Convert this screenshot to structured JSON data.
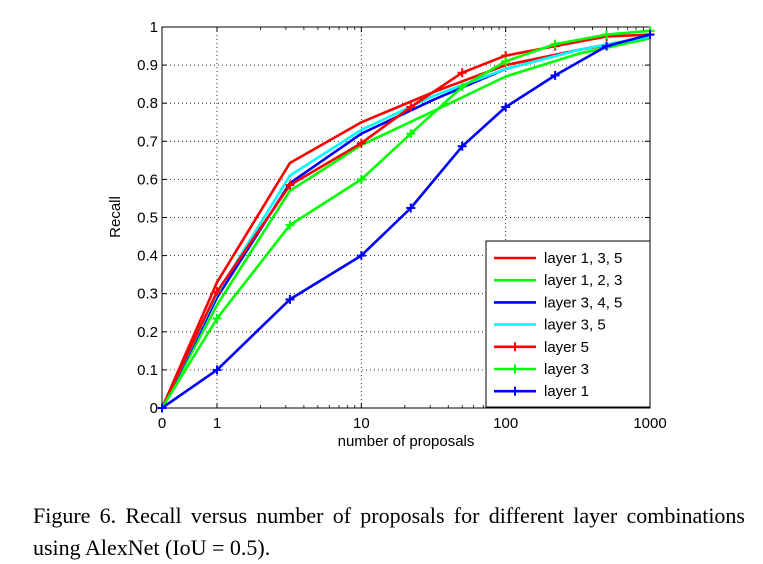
{
  "caption": "Figure 6. Recall versus number of proposals for different layer combinations using AlexNet (IoU = 0.5).",
  "chart_data": {
    "type": "line",
    "title": "",
    "xlabel": "number of proposals",
    "ylabel": "Recall",
    "x_scale": "log (0 shown at left edge)",
    "x_ticks": [
      "0",
      "1",
      "10",
      "100",
      "1000"
    ],
    "y_ticks": [
      "0",
      "0.1",
      "0.2",
      "0.3",
      "0.4",
      "0.5",
      "0.6",
      "0.7",
      "0.8",
      "0.9",
      "1"
    ],
    "ylim": [
      0,
      1
    ],
    "grid": true,
    "legend_position": "lower-right",
    "series": [
      {
        "name": "layer 1, 3, 5",
        "color": "#ff0000",
        "marker": "none",
        "x": [
          0,
          1,
          3.2,
          10,
          32,
          100,
          320,
          1000
        ],
        "y": [
          0,
          0.33,
          0.643,
          0.75,
          0.83,
          0.9,
          0.94,
          0.97
        ]
      },
      {
        "name": "layer 1, 2, 3",
        "color": "#00ff00",
        "marker": "none",
        "x": [
          0,
          1,
          3.2,
          10,
          32,
          100,
          320,
          1000
        ],
        "y": [
          0,
          0.27,
          0.57,
          0.69,
          0.78,
          0.87,
          0.93,
          0.97
        ]
      },
      {
        "name": "layer 3, 4, 5",
        "color": "#0000ff",
        "marker": "none",
        "x": [
          0,
          1,
          3.2,
          10,
          32,
          100,
          320,
          1000
        ],
        "y": [
          0,
          0.29,
          0.59,
          0.72,
          0.81,
          0.89,
          0.94,
          0.975
        ]
      },
      {
        "name": "layer 3, 5",
        "color": "#00ffff",
        "marker": "none",
        "x": [
          0,
          1,
          3.2,
          10,
          32,
          100,
          320,
          1000
        ],
        "y": [
          0,
          0.3,
          0.61,
          0.73,
          0.82,
          0.89,
          0.94,
          0.975
        ]
      },
      {
        "name": "layer 5",
        "color": "#ff0000",
        "marker": "plus",
        "x": [
          0,
          1,
          3.2,
          10,
          22,
          50,
          100,
          220,
          500,
          1000
        ],
        "y": [
          0,
          0.305,
          0.585,
          0.695,
          0.79,
          0.88,
          0.925,
          0.95,
          0.975,
          0.98
        ]
      },
      {
        "name": "layer 3",
        "color": "#00ff00",
        "marker": "plus",
        "x": [
          0,
          1,
          3.2,
          10,
          22,
          50,
          100,
          220,
          500,
          1000
        ],
        "y": [
          0,
          0.235,
          0.48,
          0.6,
          0.72,
          0.843,
          0.91,
          0.955,
          0.98,
          0.99
        ]
      },
      {
        "name": "layer 1",
        "color": "#0000ff",
        "marker": "plus",
        "x": [
          0,
          1,
          3.2,
          10,
          22,
          50,
          100,
          220,
          500,
          1000
        ],
        "y": [
          0,
          0.1,
          0.285,
          0.4,
          0.525,
          0.687,
          0.79,
          0.873,
          0.95,
          0.98
        ]
      }
    ]
  }
}
